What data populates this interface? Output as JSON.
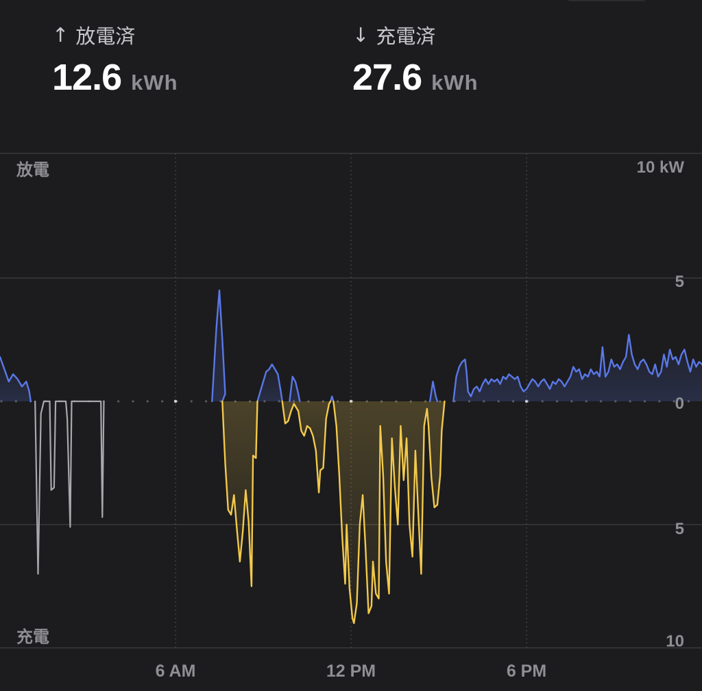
{
  "stats": {
    "discharge": {
      "arrow": "↑",
      "label": "放電済",
      "value": "12.6",
      "unit": "kWh"
    },
    "charge": {
      "arrow": "↓",
      "label": "充電済",
      "value": "27.6",
      "unit": "kWh"
    }
  },
  "colors": {
    "background": "#1c1c1e",
    "discharge": "#5a78e8",
    "charge": "#f2c94c",
    "idle": "#a8a8ad",
    "grid": "#3a3a3c",
    "text_secondary": "#8e8e93"
  },
  "chart_data": {
    "type": "area",
    "x_unit": "hours",
    "x_range": [
      0,
      24
    ],
    "y_range": [
      -10,
      10
    ],
    "top_label": "放電",
    "bottom_label": "充電",
    "y_ticks": [
      {
        "value": 10,
        "label": "10 kW"
      },
      {
        "value": 5,
        "label": "5"
      },
      {
        "value": 0,
        "label": "0"
      },
      {
        "value": -5,
        "label": "5"
      },
      {
        "value": -10,
        "label": "10"
      }
    ],
    "x_ticks": [
      {
        "value": 6,
        "label": "6 AM"
      },
      {
        "value": 12,
        "label": "12 PM"
      },
      {
        "value": 18,
        "label": "6 PM"
      }
    ],
    "series": [
      {
        "kind": "idle",
        "points": [
          [
            1.2,
            0
          ],
          [
            1.3,
            -7.0
          ],
          [
            1.4,
            -0.5
          ],
          [
            1.5,
            0
          ],
          [
            1.7,
            0
          ],
          [
            1.75,
            -3.6
          ],
          [
            1.85,
            -3.5
          ],
          [
            1.9,
            0
          ],
          [
            2.25,
            0
          ],
          [
            2.3,
            -0.7
          ],
          [
            2.4,
            -5.1
          ],
          [
            2.45,
            0
          ],
          [
            3.45,
            0
          ],
          [
            3.5,
            -4.7
          ],
          [
            3.55,
            0
          ]
        ]
      },
      {
        "kind": "discharge",
        "points": [
          [
            0,
            1.8
          ],
          [
            0.15,
            1.3
          ],
          [
            0.3,
            0.8
          ],
          [
            0.45,
            1.1
          ],
          [
            0.6,
            0.9
          ],
          [
            0.75,
            0.6
          ],
          [
            0.9,
            0.8
          ],
          [
            1.0,
            0.4
          ],
          [
            1.05,
            0
          ]
        ]
      },
      {
        "kind": "discharge",
        "points": [
          [
            7.25,
            0
          ],
          [
            7.4,
            3.0
          ],
          [
            7.5,
            4.5
          ],
          [
            7.6,
            2.5
          ],
          [
            7.7,
            0.3
          ],
          [
            7.6,
            0
          ]
        ]
      },
      {
        "kind": "discharge",
        "points": [
          [
            8.8,
            0
          ],
          [
            9.0,
            0.8
          ],
          [
            9.1,
            1.2
          ],
          [
            9.2,
            1.3
          ],
          [
            9.3,
            1.5
          ],
          [
            9.4,
            1.3
          ],
          [
            9.5,
            1.1
          ],
          [
            9.6,
            0.4
          ],
          [
            9.65,
            0
          ]
        ]
      },
      {
        "kind": "discharge",
        "points": [
          [
            9.9,
            0
          ],
          [
            10.0,
            1.0
          ],
          [
            10.1,
            0.8
          ],
          [
            10.2,
            0.3
          ],
          [
            10.25,
            0
          ]
        ]
      },
      {
        "kind": "discharge",
        "points": [
          [
            11.3,
            0
          ],
          [
            11.35,
            0.2
          ],
          [
            11.4,
            0
          ]
        ]
      },
      {
        "kind": "discharge",
        "points": [
          [
            14.7,
            0
          ],
          [
            14.8,
            0.8
          ],
          [
            14.9,
            0.2
          ],
          [
            14.95,
            0
          ]
        ]
      },
      {
        "kind": "discharge",
        "points": [
          [
            15.5,
            0
          ],
          [
            15.6,
            1.0
          ],
          [
            15.7,
            1.4
          ],
          [
            15.8,
            1.6
          ],
          [
            15.9,
            1.7
          ],
          [
            15.95,
            1.2
          ],
          [
            16.0,
            0.4
          ],
          [
            16.1,
            0.2
          ],
          [
            16.2,
            0.5
          ],
          [
            16.3,
            0.6
          ],
          [
            16.4,
            0.4
          ],
          [
            16.5,
            0.7
          ],
          [
            16.6,
            0.9
          ],
          [
            16.7,
            0.7
          ],
          [
            16.8,
            0.9
          ],
          [
            16.9,
            0.8
          ],
          [
            17.0,
            0.9
          ],
          [
            17.1,
            0.7
          ],
          [
            17.2,
            1.0
          ],
          [
            17.3,
            0.9
          ],
          [
            17.4,
            1.1
          ],
          [
            17.5,
            1.0
          ],
          [
            17.6,
            0.9
          ],
          [
            17.7,
            1.0
          ],
          [
            17.8,
            0.6
          ],
          [
            17.9,
            0.4
          ],
          [
            18.0,
            0.5
          ],
          [
            18.1,
            0.7
          ],
          [
            18.2,
            0.9
          ],
          [
            18.3,
            0.8
          ],
          [
            18.4,
            0.6
          ],
          [
            18.5,
            0.8
          ],
          [
            18.6,
            0.9
          ],
          [
            18.7,
            0.7
          ],
          [
            18.8,
            0.5
          ],
          [
            18.9,
            0.8
          ],
          [
            19.0,
            0.7
          ],
          [
            19.1,
            0.9
          ],
          [
            19.2,
            0.8
          ],
          [
            19.3,
            0.6
          ],
          [
            19.4,
            0.8
          ],
          [
            19.5,
            1.0
          ],
          [
            19.6,
            1.4
          ],
          [
            19.7,
            1.2
          ],
          [
            19.8,
            1.3
          ],
          [
            19.9,
            0.9
          ],
          [
            20.0,
            1.1
          ],
          [
            20.1,
            1.0
          ],
          [
            20.2,
            1.3
          ],
          [
            20.3,
            1.1
          ],
          [
            20.4,
            1.2
          ],
          [
            20.5,
            1.0
          ],
          [
            20.6,
            2.2
          ],
          [
            20.7,
            1.0
          ],
          [
            20.8,
            1.2
          ],
          [
            20.9,
            1.7
          ],
          [
            21.0,
            1.4
          ],
          [
            21.1,
            1.5
          ],
          [
            21.2,
            1.3
          ],
          [
            21.3,
            1.6
          ],
          [
            21.4,
            1.8
          ],
          [
            21.5,
            2.7
          ],
          [
            21.6,
            1.9
          ],
          [
            21.7,
            1.5
          ],
          [
            21.8,
            1.3
          ],
          [
            21.9,
            1.6
          ],
          [
            22.0,
            1.7
          ],
          [
            22.1,
            1.5
          ],
          [
            22.2,
            1.2
          ],
          [
            22.3,
            1.1
          ],
          [
            22.4,
            1.5
          ],
          [
            22.5,
            1.0
          ],
          [
            22.6,
            1.2
          ],
          [
            22.7,
            1.9
          ],
          [
            22.8,
            1.4
          ],
          [
            22.9,
            2.1
          ],
          [
            23.0,
            1.7
          ],
          [
            23.1,
            1.8
          ],
          [
            23.2,
            1.5
          ],
          [
            23.3,
            1.9
          ],
          [
            23.4,
            2.1
          ],
          [
            23.5,
            1.6
          ],
          [
            23.6,
            1.2
          ],
          [
            23.7,
            1.7
          ],
          [
            23.8,
            1.4
          ],
          [
            23.9,
            1.6
          ],
          [
            24.0,
            1.5
          ]
        ]
      },
      {
        "kind": "charge",
        "points": [
          [
            7.6,
            0
          ],
          [
            7.7,
            -2.5
          ],
          [
            7.8,
            -4.4
          ],
          [
            7.9,
            -4.6
          ],
          [
            8.0,
            -3.8
          ],
          [
            8.1,
            -5.2
          ],
          [
            8.2,
            -6.5
          ],
          [
            8.3,
            -5.3
          ],
          [
            8.4,
            -3.6
          ],
          [
            8.5,
            -4.9
          ],
          [
            8.6,
            -7.5
          ],
          [
            8.65,
            -2.2
          ],
          [
            8.75,
            -2.3
          ],
          [
            8.8,
            0
          ]
        ]
      },
      {
        "kind": "charge",
        "points": [
          [
            9.65,
            0
          ],
          [
            9.75,
            -0.9
          ],
          [
            9.85,
            -0.8
          ],
          [
            9.95,
            -0.4
          ],
          [
            10.05,
            -0.1
          ],
          [
            10.2,
            -0.4
          ],
          [
            10.3,
            -1.2
          ],
          [
            10.4,
            -1.4
          ],
          [
            10.5,
            -1.0
          ],
          [
            10.6,
            -1.1
          ],
          [
            10.7,
            -1.4
          ],
          [
            10.8,
            -2.0
          ],
          [
            10.9,
            -3.7
          ],
          [
            10.95,
            -2.8
          ],
          [
            11.05,
            -2.7
          ],
          [
            11.15,
            -0.7
          ],
          [
            11.25,
            -0.1
          ],
          [
            11.3,
            0
          ]
        ]
      },
      {
        "kind": "charge",
        "points": [
          [
            11.4,
            0
          ],
          [
            11.5,
            -1.0
          ],
          [
            11.6,
            -3.0
          ],
          [
            11.7,
            -5.5
          ],
          [
            11.8,
            -7.4
          ],
          [
            11.85,
            -5.0
          ],
          [
            11.95,
            -7.6
          ],
          [
            12.05,
            -8.8
          ],
          [
            12.1,
            -9.0
          ],
          [
            12.2,
            -8.2
          ],
          [
            12.3,
            -5.0
          ],
          [
            12.4,
            -3.8
          ],
          [
            12.5,
            -6.0
          ],
          [
            12.6,
            -8.6
          ],
          [
            12.7,
            -8.3
          ],
          [
            12.75,
            -6.5
          ],
          [
            12.85,
            -7.8
          ],
          [
            12.95,
            -8.0
          ],
          [
            13.0,
            -1.0
          ],
          [
            13.1,
            -3.0
          ],
          [
            13.2,
            -6.5
          ],
          [
            13.3,
            -7.8
          ],
          [
            13.4,
            -1.5
          ],
          [
            13.5,
            -3.5
          ],
          [
            13.6,
            -5.0
          ],
          [
            13.7,
            -1.0
          ],
          [
            13.8,
            -3.2
          ],
          [
            13.9,
            -1.5
          ],
          [
            14.0,
            -5.0
          ],
          [
            14.1,
            -6.3
          ],
          [
            14.2,
            -2.0
          ],
          [
            14.3,
            -4.5
          ],
          [
            14.4,
            -7.0
          ],
          [
            14.5,
            -1.0
          ],
          [
            14.6,
            -0.3
          ],
          [
            14.65,
            -1.0
          ],
          [
            14.75,
            -3.1
          ],
          [
            14.85,
            -4.3
          ],
          [
            14.95,
            -4.2
          ],
          [
            15.05,
            -3.0
          ],
          [
            15.1,
            -1.2
          ],
          [
            15.2,
            0
          ]
        ]
      }
    ]
  }
}
